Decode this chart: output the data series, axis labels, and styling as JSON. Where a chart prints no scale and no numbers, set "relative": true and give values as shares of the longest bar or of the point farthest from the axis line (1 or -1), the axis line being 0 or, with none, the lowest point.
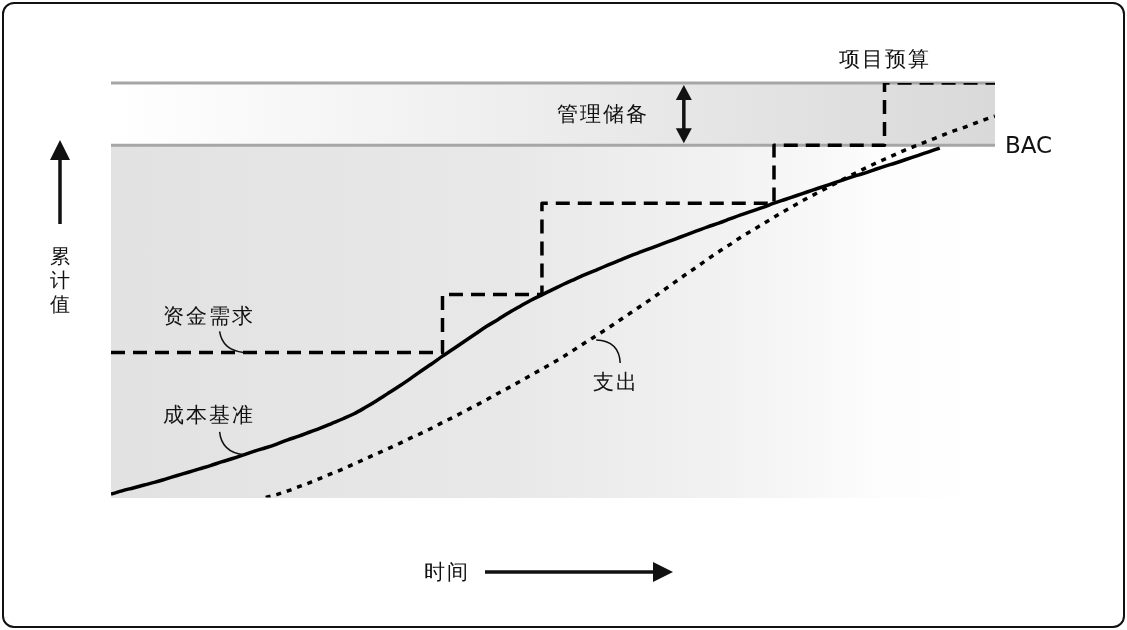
{
  "chart_data": {
    "type": "line",
    "relative": true,
    "tick_labels": false,
    "xlabel": "时间",
    "ylabel": "累计值",
    "categories": [
      null,
      null,
      null,
      null,
      null,
      null,
      null,
      null,
      null,
      null,
      null,
      null,
      null,
      null,
      null,
      null,
      null,
      null,
      null,
      null,
      null,
      null,
      null,
      null,
      null,
      null,
      null,
      null,
      null,
      null,
      null,
      null,
      null,
      null,
      null,
      null,
      null,
      null,
      null,
      null,
      null,
      null,
      null,
      null,
      null,
      null,
      null,
      null,
      null,
      null,
      null,
      null,
      null,
      null,
      null,
      null,
      null,
      null,
      null,
      null,
      null,
      null,
      null,
      null,
      null,
      null,
      null,
      null,
      null,
      null,
      null,
      null,
      null,
      null,
      null,
      null,
      null,
      null,
      null,
      null,
      null
    ],
    "series": [
      {
        "name": "资金需求",
        "type": "step",
        "color": "#000000",
        "line_style": "dashed",
        "values": [
          0.35,
          0.35,
          0.35,
          0.35,
          0.35,
          0.35,
          0.35,
          0.35,
          0.35,
          0.35,
          0.35,
          0.35,
          0.35,
          0.35,
          0.35,
          0.35,
          0.35,
          0.35,
          0.35,
          0.35,
          0.35,
          0.35,
          0.35,
          0.35,
          0.35,
          0.35,
          0.35,
          0.35,
          0.35,
          0.35,
          0.49,
          0.49,
          0.49,
          0.49,
          0.49,
          0.49,
          0.49,
          0.49,
          0.49,
          0.71,
          0.71,
          0.71,
          0.71,
          0.71,
          0.71,
          0.71,
          0.71,
          0.71,
          0.71,
          0.71,
          0.71,
          0.71,
          0.71,
          0.71,
          0.71,
          0.71,
          0.71,
          0.71,
          0.71,
          0.71,
          0.85,
          0.85,
          0.85,
          0.85,
          0.85,
          0.85,
          0.85,
          0.85,
          0.85,
          0.85,
          1,
          1,
          1,
          1,
          1,
          1,
          1,
          1,
          1,
          1,
          1
        ]
      },
      {
        "name": "成本基准",
        "type": "line",
        "color": "#000000",
        "line_style": "solid",
        "values": [
          0.008,
          0.016,
          0.023,
          0.03,
          0.037,
          0.045,
          0.053,
          0.061,
          0.069,
          0.077,
          0.086,
          0.094,
          0.103,
          0.112,
          0.12,
          0.129,
          0.139,
          0.148,
          0.158,
          0.168,
          0.179,
          0.19,
          0.202,
          0.217,
          0.233,
          0.25,
          0.267,
          0.285,
          0.304,
          0.322,
          0.341,
          0.359,
          0.377,
          0.395,
          0.413,
          0.429,
          0.446,
          0.461,
          0.476,
          0.489,
          0.502,
          0.515,
          0.527,
          0.539,
          0.55,
          0.561,
          0.572,
          0.583,
          0.593,
          0.603,
          0.613,
          0.623,
          0.633,
          0.643,
          0.653,
          0.662,
          0.672,
          0.682,
          0.691,
          0.7,
          0.71,
          0.719,
          0.728,
          0.737,
          0.746,
          0.755,
          0.764,
          0.773,
          0.781,
          0.79,
          0.799,
          0.807,
          0.816,
          0.825,
          0.834,
          0.843,
          null,
          null,
          null,
          null,
          null
        ]
      },
      {
        "name": "支出",
        "type": "line",
        "color": "#000000",
        "line_style": "dotted",
        "values": [
          null,
          null,
          null,
          null,
          null,
          null,
          null,
          null,
          null,
          null,
          null,
          null,
          null,
          null,
          0.0,
          0.007,
          0.016,
          0.026,
          0.036,
          0.047,
          0.058,
          0.069,
          0.081,
          0.093,
          0.105,
          0.117,
          0.129,
          0.142,
          0.154,
          0.167,
          0.181,
          0.194,
          0.208,
          0.222,
          0.236,
          0.251,
          0.265,
          0.28,
          0.295,
          0.31,
          0.325,
          0.341,
          0.358,
          0.375,
          0.392,
          0.409,
          0.427,
          0.445,
          0.463,
          0.481,
          0.5,
          0.519,
          0.538,
          0.556,
          0.575,
          0.593,
          0.61,
          0.628,
          0.644,
          0.66,
          0.676,
          0.692,
          0.707,
          0.722,
          0.736,
          0.75,
          0.764,
          0.778,
          0.791,
          0.804,
          0.816,
          0.828,
          0.84,
          0.85,
          0.861,
          0.871,
          0.882,
          0.891,
          0.901,
          0.911,
          0.92
        ]
      }
    ],
    "ref_lines": [
      {
        "axis": "y",
        "value": 0.85,
        "label": "BAC",
        "color": "#a6a6a6"
      },
      {
        "axis": "y",
        "value": 1,
        "label": "项目预算",
        "color": "#a6a6a6"
      }
    ],
    "bands": [
      {
        "axis": "y",
        "from": 0.85,
        "to": 1,
        "label": "管理储备",
        "color": "#d9d9d9"
      }
    ]
  }
}
